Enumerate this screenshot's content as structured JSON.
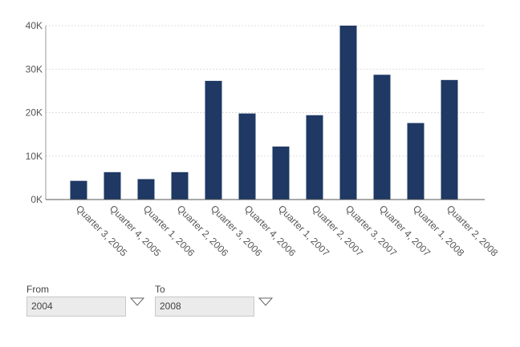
{
  "chart_data": {
    "type": "bar",
    "categories": [
      "Quarter 3, 2005",
      "Quarter 4, 2005",
      "Quarter 1, 2006",
      "Quarter 2, 2006",
      "Quarter 3, 2006",
      "Quarter 4, 2006",
      "Quarter 1, 2007",
      "Quarter 2, 2007",
      "Quarter 3, 2007",
      "Quarter 4, 2007",
      "Quarter 1, 2008",
      "Quarter 2, 2008"
    ],
    "values": [
      4300,
      6300,
      4700,
      6300,
      27300,
      19800,
      12200,
      19400,
      40000,
      28700,
      17600,
      27500
    ],
    "yticks": [
      "0K",
      "10K",
      "20K",
      "30K",
      "40K"
    ],
    "ylim": [
      0,
      40000
    ],
    "grid": true,
    "bar_color": "#1f3864"
  },
  "filters": {
    "from": {
      "label": "From",
      "value": "2004"
    },
    "to": {
      "label": "To",
      "value": "2008"
    }
  }
}
